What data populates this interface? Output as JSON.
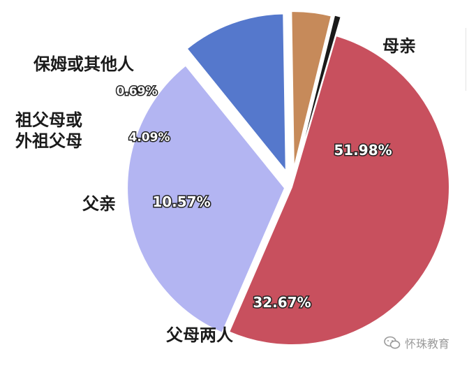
{
  "chart_data": {
    "type": "pie",
    "categories": [
      "母亲",
      "父母两人",
      "父亲",
      "祖父母或外祖父母",
      "保姆或其他人"
    ],
    "category_label_lines": [
      [
        "母亲"
      ],
      [
        "父母两人"
      ],
      [
        "父亲"
      ],
      [
        "祖父母或",
        "外祖父母"
      ],
      [
        "保姆或其他人"
      ]
    ],
    "values": [
      51.98,
      32.67,
      10.57,
      4.09,
      0.69
    ],
    "value_labels": [
      "51.98%",
      "32.67%",
      "10.57%",
      "4.09%",
      "0.69%"
    ],
    "colors": [
      "#c8505e",
      "#b3b5f2",
      "#5578cc",
      "#c68a5a",
      "#1a1a1a"
    ],
    "exploded": true
  },
  "watermark": {
    "text": "怀珠教育",
    "icon": "wechat-icon"
  }
}
